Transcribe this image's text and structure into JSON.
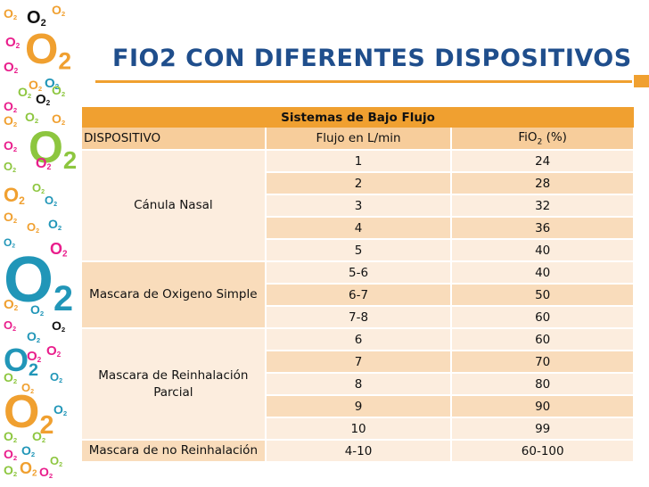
{
  "slide": {
    "title": "FIO2 CON DIFERENTES DISPOSITIVOS",
    "accent_color": "#f0a030",
    "title_color": "#1f4e8c"
  },
  "decor": {
    "symbol": "O",
    "sub": "2",
    "colors": [
      "#f0a030",
      "#8dc63f",
      "#2196b8",
      "#e91e8c",
      "#111111"
    ]
  },
  "table": {
    "header": "Sistemas de Bajo Flujo",
    "columns": {
      "device": "DISPOSITIVO",
      "flow": "Flujo en L/min",
      "fio2_prefix": "FiO",
      "fio2_sub": "2",
      "fio2_suffix": " (%)"
    },
    "groups": [
      {
        "device": "Cánula Nasal",
        "rows": [
          [
            "1",
            "24"
          ],
          [
            "2",
            "28"
          ],
          [
            "3",
            "32"
          ],
          [
            "4",
            "36"
          ],
          [
            "5",
            "40"
          ]
        ]
      },
      {
        "device": "Mascara de Oxigeno Simple",
        "rows": [
          [
            "5-6",
            "40"
          ],
          [
            "6-7",
            "50"
          ],
          [
            "7-8",
            "60"
          ]
        ]
      },
      {
        "device": "Mascara de Reinhalación Parcial",
        "rows": [
          [
            "6",
            "60"
          ],
          [
            "7",
            "70"
          ],
          [
            "8",
            "80"
          ],
          [
            "9",
            "90"
          ],
          [
            "10",
            "99"
          ]
        ]
      },
      {
        "device": "Mascara de no Reinhalación",
        "rows": [
          [
            "4-10",
            "60-100"
          ]
        ]
      }
    ]
  }
}
